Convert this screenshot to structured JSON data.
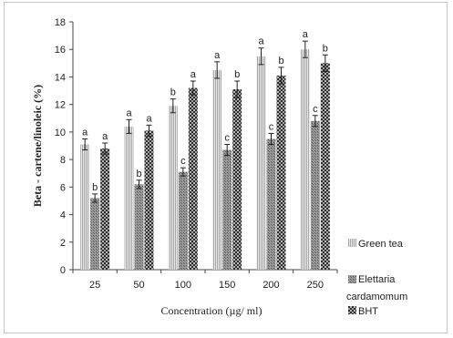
{
  "chart_data": {
    "type": "bar",
    "title": "",
    "xlabel": "Concentration  (µg/ ml)",
    "ylabel": "Beta - cartene/linoleic (%)",
    "ylim": [
      0,
      18
    ],
    "yticks": [
      0,
      2,
      4,
      6,
      8,
      10,
      12,
      14,
      16,
      18
    ],
    "grid": false,
    "legend_position": "right",
    "categories": [
      "25",
      "50",
      "100",
      "150",
      "200",
      "250"
    ],
    "series": [
      {
        "name": "Green tea",
        "values": [
          9.1,
          10.4,
          11.9,
          14.5,
          15.5,
          16.0
        ],
        "errors": [
          0.4,
          0.5,
          0.5,
          0.6,
          0.6,
          0.6
        ],
        "letters": [
          "a",
          "a",
          "b",
          "a",
          "a",
          "a"
        ]
      },
      {
        "name": "Elettaria cardamomum",
        "values": [
          5.2,
          6.2,
          7.1,
          8.7,
          9.5,
          10.8
        ],
        "errors": [
          0.3,
          0.3,
          0.3,
          0.4,
          0.4,
          0.4
        ],
        "letters": [
          "b",
          "b",
          "c",
          "c",
          "c",
          "c"
        ]
      },
      {
        "name": "BHT",
        "values": [
          8.8,
          10.1,
          13.2,
          13.1,
          14.1,
          15.0
        ],
        "errors": [
          0.4,
          0.4,
          0.5,
          0.6,
          0.6,
          0.6
        ],
        "letters": [
          "a",
          "a",
          "a",
          "b",
          "b",
          "b"
        ]
      }
    ],
    "legend": [
      "Green tea",
      "Elettaria",
      "cardamomum",
      "BHT"
    ]
  },
  "colors": {
    "green_tea": "#c9c9c9",
    "elettaria": "#7a7a7a",
    "bht": "#3a3a3a",
    "axis": "#333333"
  }
}
